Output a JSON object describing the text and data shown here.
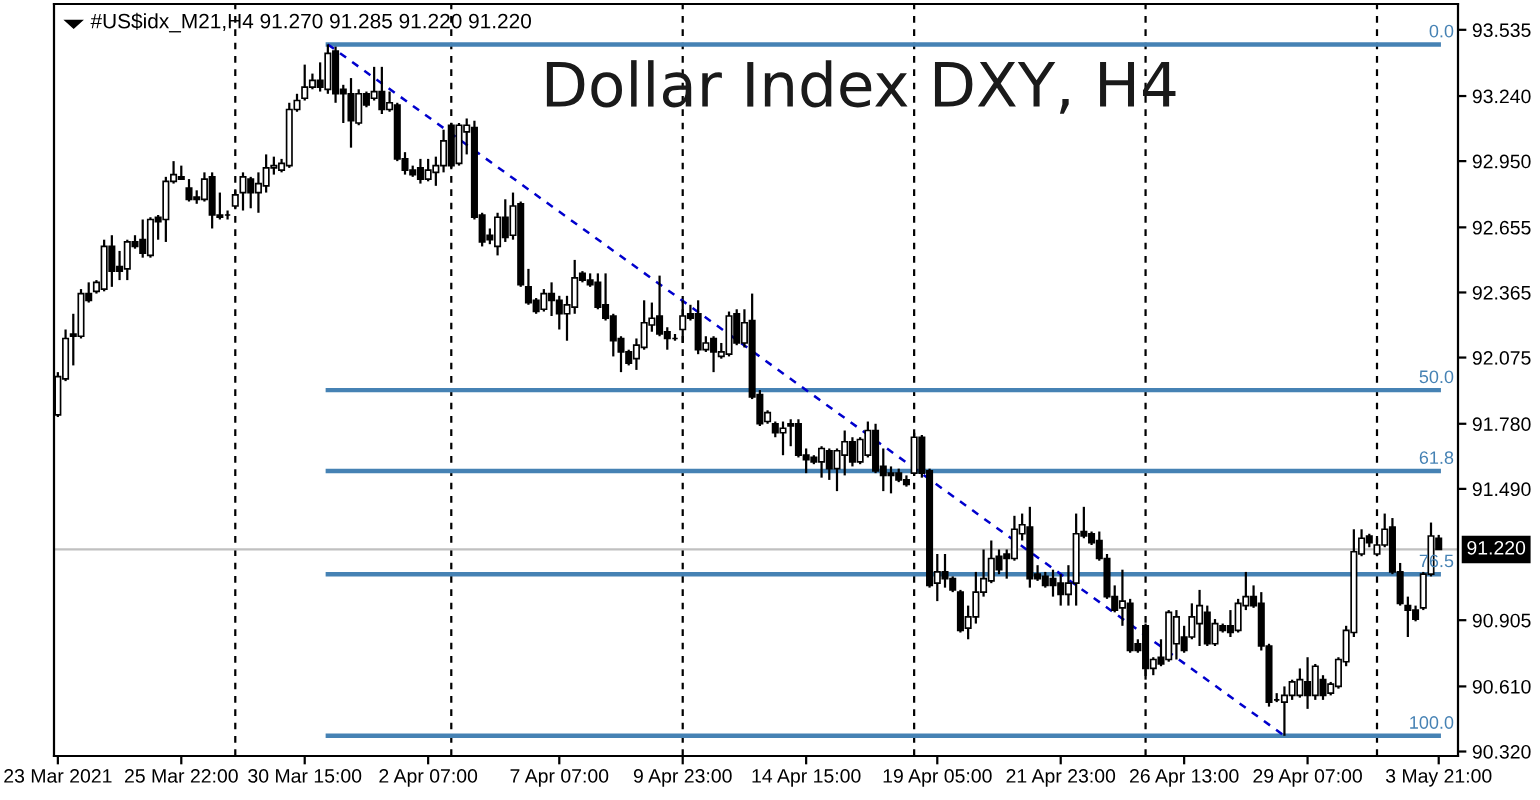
{
  "chart_data": {
    "type": "candlestick",
    "title": "Dollar Index DXY, H4",
    "subtitle": "#US$idx_M21,H4 91.270 91.285 91.220 91.220",
    "categories": [
      "23 Mar 2021",
      null,
      null,
      null,
      null,
      null,
      null,
      null,
      null,
      null,
      null,
      null,
      null,
      null,
      null,
      null,
      "25 Mar 22:00",
      null,
      null,
      null,
      null,
      null,
      null,
      null,
      null,
      null,
      null,
      null,
      null,
      null,
      null,
      null,
      "30 Mar 15:00",
      null,
      null,
      null,
      null,
      null,
      null,
      null,
      null,
      null,
      null,
      null,
      null,
      null,
      null,
      null,
      "2 Apr 07:00",
      null,
      null,
      null,
      null,
      null,
      null,
      null,
      null,
      null,
      null,
      null,
      null,
      null,
      null,
      null,
      null,
      "7 Apr 07:00",
      null,
      null,
      null,
      null,
      null,
      null,
      null,
      null,
      null,
      null,
      null,
      null,
      null,
      null,
      null,
      "9 Apr 23:00",
      null,
      null,
      null,
      null,
      null,
      null,
      null,
      null,
      null,
      null,
      null,
      null,
      null,
      null,
      null,
      "14 Apr 15:00",
      null,
      null,
      null,
      null,
      null,
      null,
      null,
      null,
      null,
      null,
      null,
      null,
      null,
      null,
      null,
      null,
      "19 Apr 05:00",
      null,
      null,
      null,
      null,
      null,
      null,
      null,
      null,
      null,
      null,
      null,
      null,
      null,
      null,
      null,
      "21 Apr 23:00",
      null,
      null,
      null,
      null,
      null,
      null,
      null,
      null,
      null,
      null,
      null,
      null,
      null,
      null,
      null,
      "26 Apr 13:00",
      null,
      null,
      null,
      null,
      null,
      null,
      null,
      null,
      null,
      null,
      null,
      null,
      null,
      null,
      null,
      "29 Apr 07:00",
      null,
      null,
      null,
      null,
      null,
      null,
      null,
      null,
      null,
      null,
      null,
      null,
      null,
      null,
      null,
      null,
      "3 May 21:00"
    ],
    "ohlc": [
      [
        91.82,
        92.01,
        91.81,
        91.99
      ],
      [
        91.98,
        92.2,
        91.97,
        92.16
      ],
      [
        92.18,
        92.27,
        92.04,
        92.17
      ],
      [
        92.17,
        92.38,
        92.16,
        92.36
      ],
      [
        92.36,
        92.41,
        92.32,
        92.33
      ],
      [
        92.37,
        92.42,
        92.36,
        92.41
      ],
      [
        92.38,
        92.6,
        92.37,
        92.57
      ],
      [
        92.57,
        92.62,
        92.39,
        92.46
      ],
      [
        92.48,
        92.55,
        92.42,
        92.46
      ],
      [
        92.47,
        92.6,
        92.42,
        92.59
      ],
      [
        92.59,
        92.62,
        92.56,
        92.57
      ],
      [
        92.6,
        92.69,
        92.52,
        92.54
      ],
      [
        92.53,
        92.7,
        92.52,
        92.69
      ],
      [
        92.7,
        92.71,
        92.6,
        92.68
      ],
      [
        92.69,
        92.88,
        92.59,
        92.86
      ],
      [
        92.86,
        92.95,
        92.85,
        92.89
      ],
      [
        92.88,
        92.93,
        92.87,
        92.87
      ],
      [
        92.83,
        92.87,
        92.77,
        92.78
      ],
      [
        92.79,
        92.82,
        92.76,
        92.78
      ],
      [
        92.78,
        92.9,
        92.77,
        92.87
      ],
      [
        92.88,
        92.9,
        92.65,
        92.71
      ],
      [
        92.71,
        92.81,
        92.69,
        92.7
      ],
      [
        92.71,
        92.73,
        92.69,
        92.71
      ],
      [
        92.75,
        92.82,
        92.74,
        92.8
      ],
      [
        92.81,
        92.9,
        92.73,
        92.88
      ],
      [
        92.87,
        92.88,
        92.74,
        92.81
      ],
      [
        92.81,
        92.9,
        92.72,
        92.85
      ],
      [
        92.84,
        92.98,
        92.81,
        92.92
      ],
      [
        92.92,
        92.97,
        92.89,
        92.93
      ],
      [
        92.91,
        92.96,
        92.9,
        92.94
      ],
      [
        92.93,
        93.21,
        92.92,
        93.18
      ],
      [
        93.18,
        93.25,
        93.17,
        93.22
      ],
      [
        93.23,
        93.38,
        93.22,
        93.28
      ],
      [
        93.28,
        93.34,
        93.27,
        93.31
      ],
      [
        93.31,
        93.39,
        93.26,
        93.28
      ],
      [
        93.27,
        93.47,
        93.25,
        93.43
      ],
      [
        93.44,
        93.46,
        93.21,
        93.25
      ],
      [
        93.27,
        93.29,
        93.12,
        93.25
      ],
      [
        93.25,
        93.32,
        93.01,
        93.13
      ],
      [
        93.12,
        93.27,
        93.11,
        93.25
      ],
      [
        93.25,
        93.26,
        93.19,
        93.2
      ],
      [
        93.23,
        93.37,
        93.22,
        93.26
      ],
      [
        93.26,
        93.37,
        93.16,
        93.18
      ],
      [
        93.18,
        93.26,
        93.17,
        93.21
      ],
      [
        93.2,
        93.21,
        92.95,
        92.96
      ],
      [
        92.96,
        92.99,
        92.89,
        92.91
      ],
      [
        92.91,
        92.93,
        92.88,
        92.89
      ],
      [
        92.92,
        92.96,
        92.85,
        92.87
      ],
      [
        92.87,
        92.96,
        92.86,
        92.91
      ],
      [
        92.9,
        92.97,
        92.84,
        92.93
      ],
      [
        92.93,
        93.09,
        92.9,
        93.04
      ],
      [
        93.11,
        93.12,
        92.92,
        92.93
      ],
      [
        92.94,
        93.12,
        92.93,
        93.11
      ],
      [
        93.08,
        93.14,
        92.98,
        93.11
      ],
      [
        93.1,
        93.13,
        92.69,
        92.7
      ],
      [
        92.71,
        92.72,
        92.57,
        92.59
      ],
      [
        92.62,
        92.65,
        92.58,
        92.6
      ],
      [
        92.57,
        92.72,
        92.53,
        92.7
      ],
      [
        92.7,
        92.78,
        92.59,
        92.61
      ],
      [
        92.62,
        92.81,
        92.6,
        92.75
      ],
      [
        92.76,
        92.77,
        92.39,
        92.4
      ],
      [
        92.39,
        92.47,
        92.31,
        92.32
      ],
      [
        92.33,
        92.34,
        92.27,
        92.28
      ],
      [
        92.29,
        92.38,
        92.28,
        92.36
      ],
      [
        92.36,
        92.41,
        92.26,
        92.33
      ],
      [
        92.33,
        92.35,
        92.2,
        92.27
      ],
      [
        92.27,
        92.35,
        92.15,
        92.31
      ],
      [
        92.3,
        92.51,
        92.27,
        92.43
      ],
      [
        92.45,
        92.46,
        92.41,
        92.42
      ],
      [
        92.42,
        92.45,
        92.39,
        92.4
      ],
      [
        92.41,
        92.45,
        92.29,
        92.3
      ],
      [
        92.31,
        92.45,
        92.24,
        92.25
      ],
      [
        92.26,
        92.27,
        92.08,
        92.15
      ],
      [
        92.16,
        92.17,
        92.01,
        92.1
      ],
      [
        92.1,
        92.11,
        92.04,
        92.05
      ],
      [
        92.07,
        92.16,
        92.02,
        92.13
      ],
      [
        92.12,
        92.33,
        92.11,
        92.23
      ],
      [
        92.22,
        92.32,
        92.19,
        92.25
      ],
      [
        92.26,
        92.44,
        92.17,
        92.18
      ],
      [
        92.19,
        92.21,
        92.11,
        92.16
      ],
      [
        92.16,
        92.18,
        92.15,
        92.16
      ],
      [
        92.2,
        92.33,
        92.14,
        92.26
      ],
      [
        92.27,
        92.31,
        92.24,
        92.25
      ],
      [
        92.27,
        92.33,
        92.09,
        92.11
      ],
      [
        92.11,
        92.17,
        92.1,
        92.14
      ],
      [
        92.16,
        92.17,
        92.01,
        92.1
      ],
      [
        92.08,
        92.14,
        92.07,
        92.1
      ],
      [
        92.09,
        92.28,
        92.08,
        92.26
      ],
      [
        92.27,
        92.29,
        92.13,
        92.14
      ],
      [
        92.14,
        92.29,
        92.12,
        92.23
      ],
      [
        92.24,
        92.36,
        91.89,
        91.9
      ],
      [
        91.91,
        91.93,
        91.77,
        91.78
      ],
      [
        91.79,
        91.84,
        91.78,
        91.83
      ],
      [
        91.78,
        91.79,
        91.72,
        91.74
      ],
      [
        91.74,
        91.79,
        91.64,
        91.76
      ],
      [
        91.78,
        91.8,
        91.68,
        91.77
      ],
      [
        91.78,
        91.8,
        91.63,
        91.64
      ],
      [
        91.64,
        91.67,
        91.56,
        91.62
      ],
      [
        91.63,
        91.64,
        91.6,
        91.61
      ],
      [
        91.61,
        91.68,
        91.54,
        91.67
      ],
      [
        91.66,
        91.67,
        91.53,
        91.58
      ],
      [
        91.58,
        91.67,
        91.48,
        91.66
      ],
      [
        91.64,
        91.75,
        91.55,
        91.7
      ],
      [
        91.7,
        91.72,
        91.59,
        91.61
      ],
      [
        91.61,
        91.72,
        91.6,
        91.71
      ],
      [
        91.64,
        91.79,
        91.63,
        91.75
      ],
      [
        91.75,
        91.78,
        91.56,
        91.57
      ],
      [
        91.59,
        91.67,
        91.48,
        91.55
      ],
      [
        91.56,
        91.59,
        91.47,
        91.55
      ],
      [
        91.56,
        91.58,
        91.52,
        91.53
      ],
      [
        91.53,
        91.55,
        91.5,
        91.51
      ],
      [
        91.56,
        91.74,
        91.55,
        91.72
      ],
      [
        91.72,
        91.73,
        91.54,
        91.56
      ],
      [
        91.57,
        91.58,
        91.05,
        91.06
      ],
      [
        91.07,
        91.2,
        90.99,
        91.12
      ],
      [
        91.12,
        91.2,
        91.05,
        91.09
      ],
      [
        91.09,
        91.1,
        91.03,
        91.04
      ],
      [
        91.03,
        91.04,
        90.85,
        90.86
      ],
      [
        90.87,
        90.97,
        90.82,
        90.92
      ],
      [
        90.92,
        91.12,
        90.89,
        91.03
      ],
      [
        91.03,
        91.22,
        91.01,
        91.09
      ],
      [
        91.08,
        91.26,
        91.07,
        91.18
      ],
      [
        91.19,
        91.22,
        91.11,
        91.13
      ],
      [
        91.2,
        91.22,
        91.09,
        91.18
      ],
      [
        91.18,
        91.37,
        91.17,
        91.31
      ],
      [
        91.29,
        91.38,
        91.26,
        91.33
      ],
      [
        91.32,
        91.41,
        91.05,
        91.09
      ],
      [
        91.11,
        91.15,
        91.08,
        91.09
      ],
      [
        91.1,
        91.12,
        91.05,
        91.06
      ],
      [
        91.09,
        91.13,
        91.01,
        91.06
      ],
      [
        91.07,
        91.11,
        90.97,
        91.02
      ],
      [
        91.02,
        91.15,
        90.97,
        91.07
      ],
      [
        91.07,
        91.38,
        90.97,
        91.29
      ],
      [
        91.3,
        91.41,
        91.27,
        91.28
      ],
      [
        91.29,
        91.3,
        91.24,
        91.25
      ],
      [
        91.26,
        91.3,
        91.17,
        91.18
      ],
      [
        91.18,
        91.2,
        91.0,
        91.01
      ],
      [
        91.01,
        91.06,
        90.94,
        90.95
      ],
      [
        90.96,
        91.13,
        90.88,
        90.99
      ],
      [
        90.98,
        91.0,
        90.76,
        90.77
      ],
      [
        90.8,
        90.82,
        90.76,
        90.77
      ],
      [
        90.88,
        90.89,
        90.64,
        90.69
      ],
      [
        90.69,
        90.74,
        90.66,
        90.73
      ],
      [
        90.74,
        90.82,
        90.7,
        90.71
      ],
      [
        90.73,
        90.95,
        90.72,
        90.94
      ],
      [
        90.8,
        90.95,
        90.73,
        90.92
      ],
      [
        90.83,
        90.88,
        90.76,
        90.77
      ],
      [
        90.83,
        90.98,
        90.82,
        90.92
      ],
      [
        90.89,
        91.04,
        90.79,
        90.97
      ],
      [
        90.94,
        90.97,
        90.79,
        90.8
      ],
      [
        90.8,
        90.91,
        90.79,
        90.89
      ],
      [
        90.88,
        90.89,
        90.85,
        90.86
      ],
      [
        90.88,
        90.95,
        90.83,
        90.85
      ],
      [
        90.86,
        91.0,
        90.85,
        90.98
      ],
      [
        90.97,
        91.12,
        90.95,
        91.01
      ],
      [
        91.01,
        91.06,
        90.96,
        90.97
      ],
      [
        90.98,
        91.03,
        90.77,
        90.79
      ],
      [
        90.79,
        90.8,
        90.52,
        90.54
      ],
      [
        90.55,
        90.58,
        90.54,
        90.55
      ],
      [
        90.54,
        90.61,
        90.39,
        90.57
      ],
      [
        90.57,
        90.64,
        90.55,
        90.63
      ],
      [
        90.57,
        90.69,
        90.56,
        90.64
      ],
      [
        90.63,
        90.74,
        90.51,
        90.57
      ],
      [
        90.57,
        90.71,
        90.55,
        90.7
      ],
      [
        90.64,
        90.66,
        90.55,
        90.57
      ],
      [
        90.58,
        90.63,
        90.57,
        90.62
      ],
      [
        90.61,
        90.74,
        90.6,
        90.73
      ],
      [
        90.72,
        90.88,
        90.7,
        90.86
      ],
      [
        90.85,
        91.31,
        90.83,
        91.21
      ],
      [
        91.2,
        91.31,
        91.19,
        91.27
      ],
      [
        91.28,
        91.29,
        91.23,
        91.25
      ],
      [
        91.2,
        91.27,
        91.19,
        91.24
      ],
      [
        91.24,
        91.38,
        91.23,
        91.31
      ],
      [
        91.32,
        91.36,
        91.11,
        91.12
      ],
      [
        91.12,
        91.16,
        90.97,
        90.98
      ],
      [
        90.97,
        91.01,
        90.83,
        90.95
      ],
      [
        90.95,
        90.97,
        90.9,
        90.91
      ],
      [
        90.96,
        91.12,
        90.95,
        91.11
      ],
      [
        91.11,
        91.34,
        91.1,
        91.28
      ],
      [
        91.27,
        91.285,
        91.22,
        91.22
      ]
    ],
    "ylim": [
      90.3,
      93.65
    ],
    "yticks": [
      93.535,
      {
        "value": 93.24,
        "label": "93.240"
      },
      {
        "value": 92.95,
        "label": "92.950"
      },
      92.655,
      92.365,
      92.075,
      {
        "value": 91.78,
        "label": "91.780"
      },
      {
        "value": 91.49,
        "label": "91.490"
      },
      90.905,
      {
        "value": 90.61,
        "label": "90.610"
      },
      {
        "value": 90.32,
        "label": "90.320"
      }
    ],
    "series": [
      {
        "type": "line",
        "name": "0.0",
        "color": "#4682b4",
        "values": [
          null,
          null,
          null,
          null,
          null,
          null,
          null,
          null,
          null,
          null,
          null,
          null,
          null,
          null,
          null,
          null,
          null,
          null,
          null,
          null,
          null,
          null,
          null,
          null,
          null,
          null,
          null,
          null,
          null,
          null,
          null,
          null,
          null,
          null,
          null,
          93.47,
          null,
          null,
          null,
          null,
          null,
          null,
          null,
          null,
          null,
          null,
          null,
          null,
          null,
          null,
          null,
          null,
          null,
          null,
          null,
          null,
          null,
          null,
          null,
          null,
          null,
          null,
          null,
          null,
          null,
          null,
          null,
          null,
          null,
          null,
          null,
          null,
          null,
          null,
          null,
          null,
          null,
          null,
          null,
          null,
          null,
          null,
          null,
          null,
          null,
          null,
          null,
          null,
          null,
          null,
          null,
          null,
          null,
          null,
          null,
          null,
          null,
          null,
          null,
          null,
          null,
          null,
          null,
          null,
          null,
          null,
          null,
          null,
          null,
          null,
          null,
          null,
          null,
          null,
          null,
          null,
          null,
          null,
          null,
          null,
          null,
          null,
          null,
          null,
          null,
          null,
          null,
          null,
          null,
          null,
          null,
          null,
          null,
          null,
          null,
          null,
          null,
          null,
          null,
          null,
          null,
          null,
          null,
          null,
          null,
          null,
          null,
          null,
          null,
          null,
          null,
          null,
          null,
          null,
          null,
          null,
          null,
          null,
          null,
          null,
          null,
          null,
          null,
          null,
          null,
          null,
          null,
          null,
          null,
          null,
          null,
          null,
          null,
          null,
          null,
          null,
          null,
          null,
          null,
          93.47
        ]
      },
      {
        "type": "line",
        "name": "50.0",
        "color": "#4682b4",
        "values": [
          null,
          null,
          null,
          null,
          null,
          null,
          null,
          null,
          null,
          null,
          null,
          null,
          null,
          null,
          null,
          null,
          null,
          null,
          null,
          null,
          null,
          null,
          null,
          null,
          null,
          null,
          null,
          null,
          null,
          null,
          null,
          null,
          null,
          null,
          null,
          91.93,
          null,
          null,
          null,
          null,
          null,
          null,
          null,
          null,
          null,
          null,
          null,
          null,
          null,
          null,
          null,
          null,
          null,
          null,
          null,
          null,
          null,
          null,
          null,
          null,
          null,
          null,
          null,
          null,
          null,
          null,
          null,
          null,
          null,
          null,
          null,
          null,
          null,
          null,
          null,
          null,
          null,
          null,
          null,
          null,
          null,
          null,
          null,
          null,
          null,
          null,
          null,
          null,
          null,
          null,
          null,
          null,
          null,
          null,
          null,
          null,
          null,
          null,
          null,
          null,
          null,
          null,
          null,
          null,
          null,
          null,
          null,
          null,
          null,
          null,
          null,
          null,
          null,
          null,
          null,
          null,
          null,
          null,
          null,
          null,
          null,
          null,
          null,
          null,
          null,
          null,
          null,
          null,
          null,
          null,
          null,
          null,
          null,
          null,
          null,
          null,
          null,
          null,
          null,
          null,
          null,
          null,
          null,
          null,
          null,
          null,
          null,
          null,
          null,
          null,
          null,
          null,
          null,
          null,
          null,
          null,
          null,
          null,
          null,
          null,
          null,
          null,
          null,
          null,
          null,
          null,
          null,
          null,
          null,
          null,
          null,
          null,
          null,
          null,
          null,
          null,
          null,
          null,
          null,
          91.93
        ]
      },
      {
        "type": "line",
        "name": "61.8",
        "color": "#4682b4",
        "values": [
          null,
          null,
          null,
          null,
          null,
          null,
          null,
          null,
          null,
          null,
          null,
          null,
          null,
          null,
          null,
          null,
          null,
          null,
          null,
          null,
          null,
          null,
          null,
          null,
          null,
          null,
          null,
          null,
          null,
          null,
          null,
          null,
          null,
          null,
          null,
          91.57,
          null,
          null,
          null,
          null,
          null,
          null,
          null,
          null,
          null,
          null,
          null,
          null,
          null,
          null,
          null,
          null,
          null,
          null,
          null,
          null,
          null,
          null,
          null,
          null,
          null,
          null,
          null,
          null,
          null,
          null,
          null,
          null,
          null,
          null,
          null,
          null,
          null,
          null,
          null,
          null,
          null,
          null,
          null,
          null,
          null,
          null,
          null,
          null,
          null,
          null,
          null,
          null,
          null,
          null,
          null,
          null,
          null,
          null,
          null,
          null,
          null,
          null,
          null,
          null,
          null,
          null,
          null,
          null,
          null,
          null,
          null,
          null,
          null,
          null,
          null,
          null,
          null,
          null,
          null,
          null,
          null,
          null,
          null,
          null,
          null,
          null,
          null,
          null,
          null,
          null,
          null,
          null,
          null,
          null,
          null,
          null,
          null,
          null,
          null,
          null,
          null,
          null,
          null,
          null,
          null,
          null,
          null,
          null,
          null,
          null,
          null,
          null,
          null,
          null,
          null,
          null,
          null,
          null,
          null,
          null,
          null,
          null,
          null,
          null,
          null,
          null,
          null,
          null,
          null,
          null,
          null,
          null,
          null,
          null,
          null,
          null,
          null,
          null,
          null,
          null,
          null,
          null,
          null,
          91.57
        ]
      },
      {
        "type": "line",
        "name": "76.5",
        "color": "#4682b4",
        "values": [
          null,
          null,
          null,
          null,
          null,
          null,
          null,
          null,
          null,
          null,
          null,
          null,
          null,
          null,
          null,
          null,
          null,
          null,
          null,
          null,
          null,
          null,
          null,
          null,
          null,
          null,
          null,
          null,
          null,
          null,
          null,
          null,
          null,
          null,
          null,
          91.11,
          null,
          null,
          null,
          null,
          null,
          null,
          null,
          null,
          null,
          null,
          null,
          null,
          null,
          null,
          null,
          null,
          null,
          null,
          null,
          null,
          null,
          null,
          null,
          null,
          null,
          null,
          null,
          null,
          null,
          null,
          null,
          null,
          null,
          null,
          null,
          null,
          null,
          null,
          null,
          null,
          null,
          null,
          null,
          null,
          null,
          null,
          null,
          null,
          null,
          null,
          null,
          null,
          null,
          null,
          null,
          null,
          null,
          null,
          null,
          null,
          null,
          null,
          null,
          null,
          null,
          null,
          null,
          null,
          null,
          null,
          null,
          null,
          null,
          null,
          null,
          null,
          null,
          null,
          null,
          null,
          null,
          null,
          null,
          null,
          null,
          null,
          null,
          null,
          null,
          null,
          null,
          null,
          null,
          null,
          null,
          null,
          null,
          null,
          null,
          null,
          null,
          null,
          null,
          null,
          null,
          null,
          null,
          null,
          null,
          null,
          null,
          null,
          null,
          null,
          null,
          null,
          null,
          null,
          null,
          null,
          null,
          null,
          null,
          null,
          null,
          null,
          null,
          null,
          null,
          null,
          null,
          null,
          null,
          null,
          null,
          null,
          null,
          null,
          null,
          null,
          null,
          null,
          null,
          91.11
        ]
      },
      {
        "type": "line",
        "name": "100.0",
        "color": "#4682b4",
        "values": [
          null,
          null,
          null,
          null,
          null,
          null,
          null,
          null,
          null,
          null,
          null,
          null,
          null,
          null,
          null,
          null,
          null,
          null,
          null,
          null,
          null,
          null,
          null,
          null,
          null,
          null,
          null,
          null,
          null,
          null,
          null,
          null,
          null,
          null,
          null,
          90.39,
          null,
          null,
          null,
          null,
          null,
          null,
          null,
          null,
          null,
          null,
          null,
          null,
          null,
          null,
          null,
          null,
          null,
          null,
          null,
          null,
          null,
          null,
          null,
          null,
          null,
          null,
          null,
          null,
          null,
          null,
          null,
          null,
          null,
          null,
          null,
          null,
          null,
          null,
          null,
          null,
          null,
          null,
          null,
          null,
          null,
          null,
          null,
          null,
          null,
          null,
          null,
          null,
          null,
          null,
          null,
          null,
          null,
          null,
          null,
          null,
          null,
          null,
          null,
          null,
          null,
          null,
          null,
          null,
          null,
          null,
          null,
          null,
          null,
          null,
          null,
          null,
          null,
          null,
          null,
          null,
          null,
          null,
          null,
          null,
          null,
          null,
          null,
          null,
          null,
          null,
          null,
          null,
          null,
          null,
          null,
          null,
          null,
          null,
          null,
          null,
          null,
          null,
          null,
          null,
          null,
          null,
          null,
          null,
          null,
          null,
          null,
          null,
          null,
          null,
          null,
          null,
          null,
          null,
          null,
          null,
          null,
          null,
          null,
          null,
          null,
          null,
          null,
          null,
          null,
          null,
          null,
          null,
          null,
          null,
          null,
          null,
          null,
          null,
          null,
          null,
          null,
          null,
          null,
          90.39
        ]
      },
      {
        "type": "line",
        "color": "#0000cd",
        "line_style": "dashed",
        "values": [
          null,
          null,
          null,
          null,
          null,
          null,
          null,
          null,
          null,
          null,
          null,
          null,
          null,
          null,
          null,
          null,
          null,
          null,
          null,
          null,
          null,
          null,
          null,
          null,
          null,
          null,
          null,
          null,
          null,
          null,
          null,
          null,
          null,
          null,
          null,
          93.47,
          null,
          null,
          null,
          null,
          null,
          null,
          null,
          null,
          null,
          null,
          null,
          null,
          null,
          null,
          null,
          null,
          null,
          null,
          null,
          null,
          null,
          null,
          null,
          null,
          null,
          null,
          null,
          null,
          null,
          null,
          null,
          null,
          null,
          null,
          null,
          null,
          null,
          null,
          null,
          null,
          null,
          null,
          null,
          null,
          null,
          null,
          null,
          null,
          null,
          null,
          null,
          null,
          null,
          null,
          null,
          null,
          null,
          null,
          null,
          null,
          null,
          null,
          null,
          null,
          null,
          null,
          null,
          null,
          null,
          null,
          null,
          null,
          null,
          null,
          null,
          null,
          null,
          null,
          null,
          null,
          null,
          null,
          null,
          null,
          null,
          null,
          null,
          null,
          null,
          null,
          null,
          null,
          null,
          null,
          null,
          null,
          null,
          null,
          null,
          null,
          null,
          null,
          null,
          null,
          null,
          null,
          null,
          null,
          null,
          null,
          null,
          null,
          null,
          null,
          null,
          null,
          null,
          null,
          null,
          null,
          null,
          null,
          null,
          90.39,
          null,
          null,
          null,
          null,
          null,
          null,
          null,
          null,
          null,
          null,
          null,
          null,
          null,
          null,
          null,
          null,
          null,
          null,
          null,
          null
        ]
      }
    ],
    "ref_lines": [
      {
        "axis": "y",
        "value": 91.22,
        "label": "91.220",
        "color": "#c0c0c0"
      }
    ]
  }
}
